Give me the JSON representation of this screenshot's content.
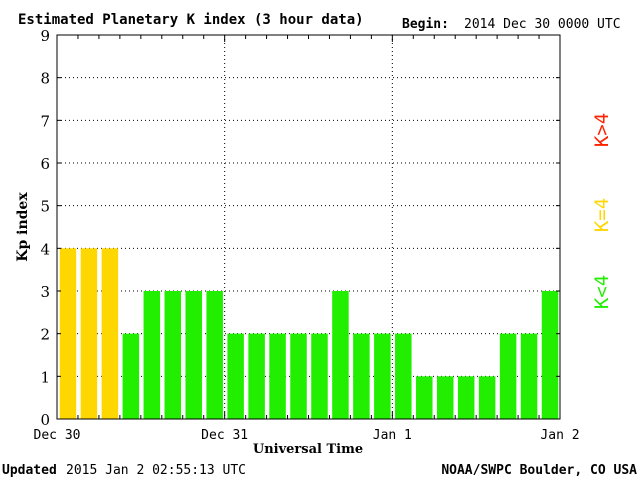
{
  "header": {
    "title": "Estimated Planetary K index (3 hour data)",
    "begin_label": "Begin:",
    "begin_value": "2014 Dec 30 0000 UTC"
  },
  "footer": {
    "updated_label": "Updated",
    "updated_value": "2015 Jan  2 02:55:13 UTC",
    "credit": "NOAA/SWPC Boulder, CO USA"
  },
  "legend": {
    "items": [
      {
        "label": "K<4",
        "color": "#22ee00"
      },
      {
        "label": "K=4",
        "color": "#ffd700"
      },
      {
        "label": "K>4",
        "color": "#ff2200"
      }
    ]
  },
  "chart_data": {
    "type": "bar",
    "title": "Estimated Planetary K index (3 hour data)",
    "xlabel": "Universal Time",
    "ylabel": "Kp index",
    "ylim": [
      0,
      9
    ],
    "yticks": [
      0,
      1,
      2,
      3,
      4,
      5,
      6,
      7,
      8,
      9
    ],
    "x_ticks": [
      "Dec 30",
      "Dec 31",
      "Jan 1",
      "Jan 2"
    ],
    "bars_per_day": 8,
    "values": [
      4,
      4,
      4,
      2,
      3,
      3,
      3,
      3,
      2,
      2,
      2,
      2,
      2,
      3,
      2,
      2,
      2,
      1,
      1,
      1,
      1,
      2,
      2,
      3
    ],
    "grid": true,
    "colors": {
      "below": "#22ee00",
      "equal": "#ffd700",
      "above": "#ff2200"
    }
  }
}
